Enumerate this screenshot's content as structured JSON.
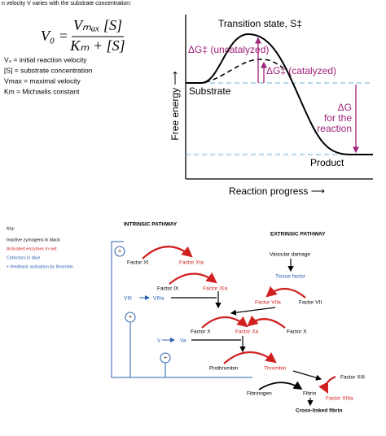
{
  "header": {
    "cropped_text": "n velocity V varies with the substrate concentration:"
  },
  "equation": {
    "lhs": "V₀ =",
    "numerator": "Vₘₐₓ [S]",
    "denominator": "Kₘ + [S]"
  },
  "definitions": [
    "V₀ = initial reaction velocity",
    "[S] = substrate concentration",
    "Vmax = maximal velocity",
    "Km = Michaelis constant"
  ],
  "energy_diagram": {
    "transition_state": "Transition state, S‡",
    "uncatalyzed": "ΔG‡ (uncatalyzed)",
    "catalyzed": "ΔG‡ (catalyzed)",
    "substrate": "Substrate",
    "delta_g": [
      "ΔG",
      "for the",
      "reaction"
    ],
    "product": "Product",
    "y_axis": "Free energy ⟶",
    "x_axis": "Reaction progress ⟶"
  },
  "cascade": {
    "key": {
      "title": "Key",
      "items": [
        "Inactive zymogens in black",
        "Activated enzymes in red",
        "Cofactors in blue",
        "+ feedback activation by thrombin"
      ]
    },
    "intrinsic_title": "INTRINSIC PATHWAY",
    "extrinsic_title": "EXTRINSIC PATHWAY",
    "nodes": [
      "Factor XI",
      "Factor XIa",
      "Vascular damage",
      "Tissue factor",
      "Factor IX",
      "Factor IXa",
      "VIII",
      "VIIIa",
      "Factor VIIa",
      "Factor VII",
      "Factor X",
      "Factor Xa",
      "Factor X",
      "V",
      "Va",
      "Prothrombin",
      "Thrombin",
      "Factor XIII",
      "Fibrinogen",
      "Fibrin",
      "Factor XIIIa",
      "Cross-linked fibrin"
    ],
    "plus": "+"
  }
}
